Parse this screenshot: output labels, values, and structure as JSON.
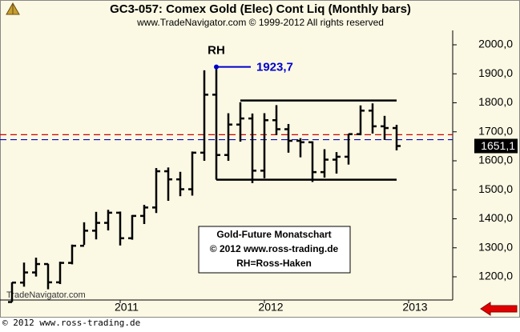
{
  "chart_data": {
    "type": "ohlc",
    "title": "GC3-057:  Comex Gold (Elec) Cont Liq  (Monthly bars)",
    "subtitle": "www.TradeNavigator.com © 1999-2012 All rights reserved",
    "watermark": "TradeNavigator.com",
    "footer": "© 2012  www.ross-trading.de",
    "categories": [
      null,
      null,
      null,
      null,
      null,
      null,
      null,
      null,
      null,
      "2011",
      null,
      null,
      null,
      null,
      null,
      null,
      null,
      null,
      null,
      null,
      null,
      "2012",
      null,
      null,
      null,
      null,
      null,
      null,
      null,
      null,
      null,
      null,
      null,
      "2013"
    ],
    "open": [
      1113,
      1180,
      1215,
      1244,
      1181,
      1248,
      1307,
      1359,
      1386,
      1421,
      1333,
      1410,
      1439,
      1564,
      1536,
      1502,
      1628,
      1828,
      1620,
      1725,
      1746,
      1566,
      1740,
      1709,
      1669,
      1664,
      1561,
      1604,
      1614,
      1692,
      1773,
      1719,
      1713,
      null
    ],
    "high": [
      1181,
      1249,
      1266,
      1245,
      1252,
      1311,
      1388,
      1424,
      1431,
      1425,
      1413,
      1448,
      1575,
      1577,
      1562,
      1632,
      1912,
      1923.7,
      1764,
      1802,
      1763,
      1764,
      1792,
      1727,
      1678,
      1667,
      1640,
      1630,
      1693,
      1791,
      1798,
      1755,
      1724,
      null
    ],
    "low": [
      1113,
      1166,
      1201,
      1157,
      1175,
      1243,
      1310,
      1329,
      1360,
      1308,
      1328,
      1382,
      1420,
      1462,
      1478,
      1480,
      1600,
      1535,
      1600,
      1666,
      1523,
      1540,
      1689,
      1628,
      1612,
      1527,
      1542,
      1556,
      1587,
      1688,
      1694,
      1672,
      1636,
      null
    ],
    "close": [
      1180,
      1215,
      1244,
      1181,
      1248,
      1307,
      1359,
      1386,
      1421,
      1333,
      1410,
      1439,
      1564,
      1536,
      1502,
      1628,
      1828,
      1620,
      1725,
      1746,
      1566,
      1740,
      1709,
      1669,
      1664,
      1561,
      1604,
      1614,
      1692,
      1773,
      1719,
      1713,
      1651.1,
      null
    ],
    "color": "#000000",
    "ylim": [
      1120,
      2045
    ],
    "yticks": [
      {
        "value": 1200,
        "label": "1200,0"
      },
      {
        "value": 1300,
        "label": "1300,0"
      },
      {
        "value": 1400,
        "label": "1400,0"
      },
      {
        "value": 1500,
        "label": "1500,0"
      },
      {
        "value": 1600,
        "label": "1600,0"
      },
      {
        "value": 1700,
        "label": "1700,0"
      },
      {
        "value": 1800,
        "label": "1800,0"
      },
      {
        "value": 1900,
        "label": "1900,0"
      },
      {
        "value": 2000,
        "label": "2000,0"
      }
    ],
    "last_price": {
      "value": 1651.1,
      "label": "1651,1"
    },
    "peak": {
      "name": "RH",
      "value": 1923.7,
      "label": "1923,7",
      "color": "#0000cc"
    },
    "hlines": [
      {
        "value": 1690,
        "color": "#cc0000"
      },
      {
        "value": 1673,
        "color": "#0000cc"
      }
    ],
    "channel": [
      1808,
      1535
    ],
    "note": [
      "Gold-Future Monatschart",
      "© 2012  www.ross-trading.de",
      "RH=Ross-Haken"
    ]
  }
}
